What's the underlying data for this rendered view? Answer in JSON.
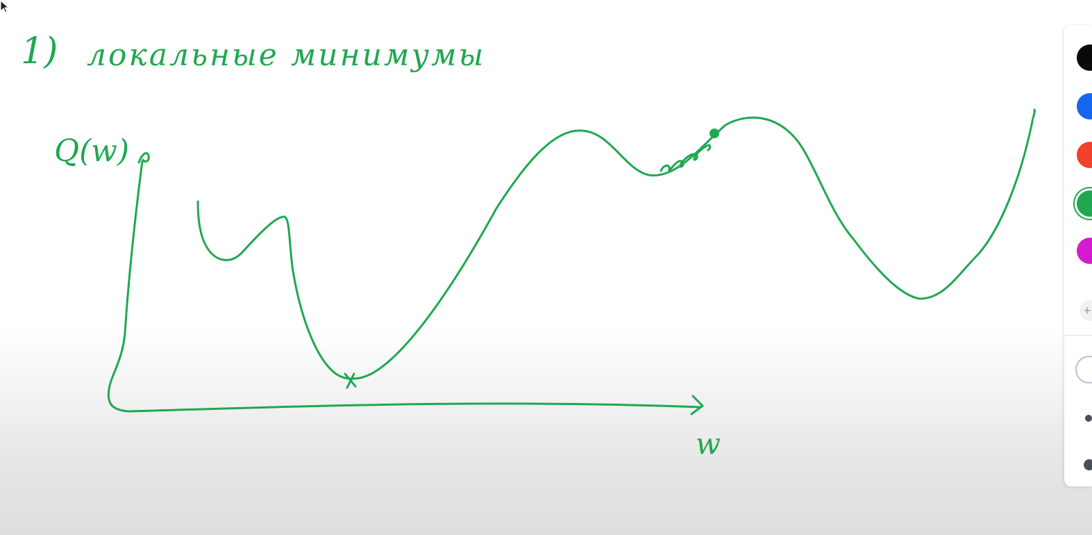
{
  "whiteboard": {
    "title_number": "1)",
    "title_text": "локальные минимумы",
    "y_axis_label": "Q(w)",
    "x_axis_label": "w",
    "ink_color": "#1fa84f"
  },
  "toolbar": {
    "colors": [
      {
        "name": "black",
        "hex": "#0a0a0a",
        "selected": false
      },
      {
        "name": "blue",
        "hex": "#1565f0",
        "selected": false
      },
      {
        "name": "red",
        "hex": "#f2412c",
        "selected": false
      },
      {
        "name": "green",
        "hex": "#1fa84f",
        "selected": true
      },
      {
        "name": "magenta",
        "hex": "#d41bd0",
        "selected": false
      }
    ],
    "more_colors_icon": "plus-icon",
    "more_colors_label": "+"
  }
}
